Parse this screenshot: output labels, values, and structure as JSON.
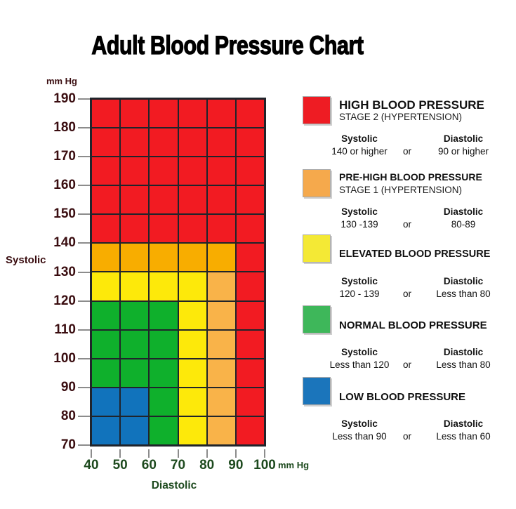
{
  "title": "Adult Blood Pressure Chart",
  "y_axis": {
    "unit": "mm Hg",
    "label": "Systolic",
    "ticks": [
      "190",
      "180",
      "170",
      "160",
      "150",
      "140",
      "130",
      "120",
      "110",
      "100",
      "90",
      "80",
      "70"
    ]
  },
  "x_axis": {
    "unit": "mm Hg",
    "label": "Diastolic",
    "ticks": [
      "40",
      "50",
      "60",
      "70",
      "80",
      "90",
      "100"
    ]
  },
  "palette": {
    "stage2": "#f21b22",
    "stage1_dark": "#f8ad00",
    "stage1": "#f9b349",
    "elevated": "#fde90a",
    "normal": "#0fb02c",
    "low": "#1173bc"
  },
  "chart_data": {
    "type": "heatmap",
    "title": "Adult Blood Pressure Chart",
    "xlabel": "Diastolic",
    "ylabel": "Systolic",
    "units": "mm Hg",
    "x_ticks": [
      40,
      50,
      60,
      70,
      80,
      90,
      100
    ],
    "y_ticks": [
      190,
      180,
      170,
      160,
      150,
      140,
      130,
      120,
      110,
      100,
      90,
      80,
      70
    ],
    "xlim": [
      40,
      100
    ],
    "ylim": [
      70,
      190
    ],
    "grid": "on",
    "legend_position": "right",
    "rows": [
      {
        "systolic": "180-190",
        "cells": [
          "stage2",
          "stage2",
          "stage2",
          "stage2",
          "stage2",
          "stage2"
        ]
      },
      {
        "systolic": "170-180",
        "cells": [
          "stage2",
          "stage2",
          "stage2",
          "stage2",
          "stage2",
          "stage2"
        ]
      },
      {
        "systolic": "160-170",
        "cells": [
          "stage2",
          "stage2",
          "stage2",
          "stage2",
          "stage2",
          "stage2"
        ]
      },
      {
        "systolic": "150-160",
        "cells": [
          "stage2",
          "stage2",
          "stage2",
          "stage2",
          "stage2",
          "stage2"
        ]
      },
      {
        "systolic": "140-150",
        "cells": [
          "stage2",
          "stage2",
          "stage2",
          "stage2",
          "stage2",
          "stage2"
        ]
      },
      {
        "systolic": "130-140",
        "cells": [
          "stage1_dark",
          "stage1_dark",
          "stage1_dark",
          "stage1_dark",
          "stage1_dark",
          "stage2"
        ]
      },
      {
        "systolic": "120-130",
        "cells": [
          "elevated",
          "elevated",
          "elevated",
          "elevated",
          "stage1",
          "stage2"
        ]
      },
      {
        "systolic": "110-120",
        "cells": [
          "normal",
          "normal",
          "normal",
          "elevated",
          "stage1",
          "stage2"
        ]
      },
      {
        "systolic": "100-110",
        "cells": [
          "normal",
          "normal",
          "normal",
          "elevated",
          "stage1",
          "stage2"
        ]
      },
      {
        "systolic": "90-100",
        "cells": [
          "normal",
          "normal",
          "normal",
          "elevated",
          "stage1",
          "stage2"
        ]
      },
      {
        "systolic": "80-90",
        "cells": [
          "low",
          "low",
          "normal",
          "elevated",
          "stage1",
          "stage2"
        ]
      },
      {
        "systolic": "70-80",
        "cells": [
          "low",
          "low",
          "normal",
          "elevated",
          "stage1",
          "stage2"
        ]
      }
    ],
    "diastolic_columns": [
      "40-50",
      "50-60",
      "60-70",
      "70-80",
      "80-90",
      "90-100"
    ]
  },
  "legend_labels": {
    "systolic": "Systolic",
    "or": "or",
    "diastolic": "Diastolic"
  },
  "legend": [
    {
      "color": "#ee1c23",
      "category": "stage2",
      "title": "HIGH BLOOD PRESSURE",
      "subtitle": "STAGE 2 (HYPERTENSION)",
      "systolic": "140 or higher",
      "diastolic": "90 or higher"
    },
    {
      "color": "#f5a94c",
      "category": "stage1",
      "title": "PRE-HIGH BLOOD PRESSURE",
      "subtitle": "STAGE 1 (HYPERTENSION)",
      "systolic": "130 -139",
      "diastolic": "80-89"
    },
    {
      "color": "#f4e935",
      "category": "elevated",
      "title": "ELEVATED BLOOD PRESSURE",
      "subtitle": "",
      "systolic": "120 - 139",
      "diastolic": "Less than 80"
    },
    {
      "color": "#3eb75a",
      "category": "normal",
      "title": "NORMAL BLOOD PRESSURE",
      "subtitle": "",
      "systolic": "Less than 120",
      "diastolic": "Less than 80"
    },
    {
      "color": "#1b75bb",
      "category": "low",
      "title": "LOW BLOOD PRESSURE",
      "subtitle": "",
      "systolic": "Less than 90",
      "diastolic": "Less than 60"
    }
  ]
}
